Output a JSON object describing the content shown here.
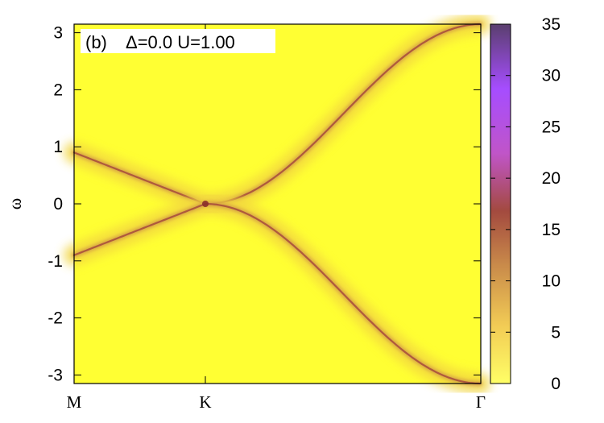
{
  "chart_data": {
    "type": "heatmap",
    "panel_label": "(b)",
    "annotation": "Δ=0.0  U=1.00",
    "xlabel": "",
    "ylabel": "ω",
    "x_ticks": [
      "M",
      "K",
      "Γ"
    ],
    "y_ticks": [
      "3",
      "2",
      "1",
      "0",
      "-1",
      "-2",
      "-3"
    ],
    "ylim": [
      -3.15,
      3.15
    ],
    "colorbar": {
      "range": [
        0,
        35
      ],
      "ticks": [
        "35",
        "30",
        "25",
        "20",
        "15",
        "10",
        "5",
        "0"
      ],
      "colors": [
        "#ffff66",
        "#f2cc55",
        "#c98a4a",
        "#a34a3f",
        "#c055c8",
        "#a64dff",
        "#5a3f6e"
      ]
    },
    "bands": {
      "upper": {
        "M": 0.9,
        "K": 0.0,
        "Gamma": 3.15
      },
      "lower": {
        "M": -0.9,
        "K": 0.0,
        "Gamma": -3.15
      },
      "peak_intensity_at_K": 17
    }
  }
}
